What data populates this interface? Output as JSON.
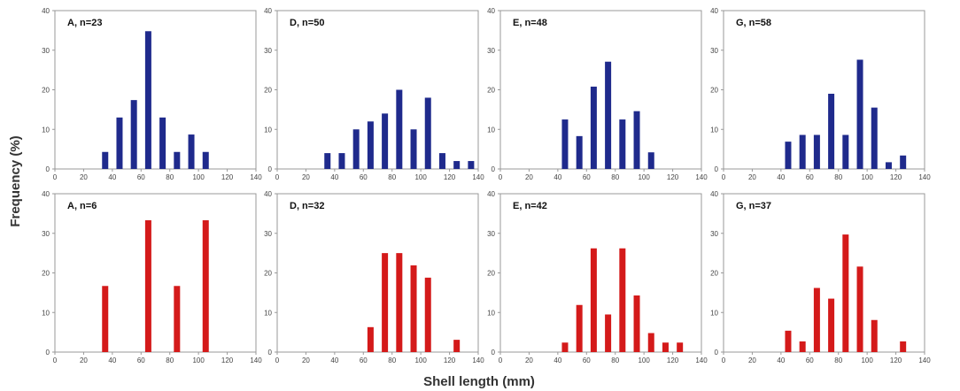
{
  "figure": {
    "ylabel": "Frequency (%)",
    "xlabel": "Shell length (mm)"
  },
  "chart_data": [
    {
      "type": "bar",
      "title": "A, n=23",
      "series_color": "#1f2a8c",
      "x": [
        35,
        45,
        55,
        65,
        75,
        85,
        95,
        105
      ],
      "values": [
        4.3,
        13,
        17.4,
        34.8,
        13,
        4.3,
        8.7,
        4.3
      ],
      "xlim": [
        0,
        140
      ],
      "ylim": [
        0,
        40
      ],
      "xticks": [
        0,
        20,
        40,
        60,
        80,
        100,
        120,
        140
      ],
      "yticks": [
        0,
        10,
        20,
        30,
        40
      ]
    },
    {
      "type": "bar",
      "title": "D, n=50",
      "series_color": "#1f2a8c",
      "x": [
        35,
        45,
        55,
        65,
        75,
        85,
        95,
        105,
        115,
        125,
        135
      ],
      "values": [
        4,
        4,
        10,
        12,
        14,
        20,
        10,
        18,
        4,
        2,
        2
      ],
      "xlim": [
        0,
        140
      ],
      "ylim": [
        0,
        40
      ],
      "xticks": [
        0,
        20,
        40,
        60,
        80,
        100,
        120,
        140
      ],
      "yticks": [
        0,
        10,
        20,
        30,
        40
      ]
    },
    {
      "type": "bar",
      "title": "E, n=48",
      "series_color": "#1f2a8c",
      "x": [
        45,
        55,
        65,
        75,
        85,
        95,
        105
      ],
      "values": [
        12.5,
        8.3,
        20.8,
        27.1,
        12.5,
        14.6,
        4.2
      ],
      "xlim": [
        0,
        140
      ],
      "ylim": [
        0,
        40
      ],
      "xticks": [
        0,
        20,
        40,
        60,
        80,
        100,
        120,
        140
      ],
      "yticks": [
        0,
        10,
        20,
        30,
        40
      ]
    },
    {
      "type": "bar",
      "title": "G, n=58",
      "series_color": "#1f2a8c",
      "x": [
        45,
        55,
        65,
        75,
        85,
        95,
        105,
        115,
        125
      ],
      "values": [
        6.9,
        8.6,
        8.6,
        19,
        8.6,
        27.6,
        15.5,
        1.7,
        3.4
      ],
      "xlim": [
        0,
        140
      ],
      "ylim": [
        0,
        40
      ],
      "xticks": [
        0,
        20,
        40,
        60,
        80,
        100,
        120,
        140
      ],
      "yticks": [
        0,
        10,
        20,
        30,
        40
      ]
    },
    {
      "type": "bar",
      "title": "A, n=6",
      "series_color": "#d41a1a",
      "x": [
        35,
        65,
        85,
        105
      ],
      "values": [
        16.7,
        33.3,
        16.7,
        33.3
      ],
      "xlim": [
        0,
        140
      ],
      "ylim": [
        0,
        40
      ],
      "xticks": [
        0,
        20,
        40,
        60,
        80,
        100,
        120,
        140
      ],
      "yticks": [
        0,
        10,
        20,
        30,
        40
      ]
    },
    {
      "type": "bar",
      "title": "D, n=32",
      "series_color": "#d41a1a",
      "x": [
        65,
        75,
        85,
        95,
        105,
        125
      ],
      "values": [
        6.3,
        25,
        25,
        21.9,
        18.8,
        3.1
      ],
      "xlim": [
        0,
        140
      ],
      "ylim": [
        0,
        40
      ],
      "xticks": [
        0,
        20,
        40,
        60,
        80,
        100,
        120,
        140
      ],
      "yticks": [
        0,
        10,
        20,
        30,
        40
      ]
    },
    {
      "type": "bar",
      "title": "E, n=42",
      "series_color": "#d41a1a",
      "x": [
        45,
        55,
        65,
        75,
        85,
        95,
        105,
        115,
        125
      ],
      "values": [
        2.4,
        11.9,
        26.2,
        9.5,
        26.2,
        14.3,
        4.8,
        2.4,
        2.4
      ],
      "xlim": [
        0,
        140
      ],
      "ylim": [
        0,
        40
      ],
      "xticks": [
        0,
        20,
        40,
        60,
        80,
        100,
        120,
        140
      ],
      "yticks": [
        0,
        10,
        20,
        30,
        40
      ]
    },
    {
      "type": "bar",
      "title": "G, n=37",
      "series_color": "#d41a1a",
      "x": [
        45,
        55,
        65,
        75,
        85,
        95,
        105,
        125
      ],
      "values": [
        5.4,
        2.7,
        16.2,
        13.5,
        29.7,
        21.6,
        8.1,
        2.7
      ],
      "xlim": [
        0,
        140
      ],
      "ylim": [
        0,
        40
      ],
      "xticks": [
        0,
        20,
        40,
        60,
        80,
        100,
        120,
        140
      ],
      "yticks": [
        0,
        10,
        20,
        30,
        40
      ]
    }
  ]
}
